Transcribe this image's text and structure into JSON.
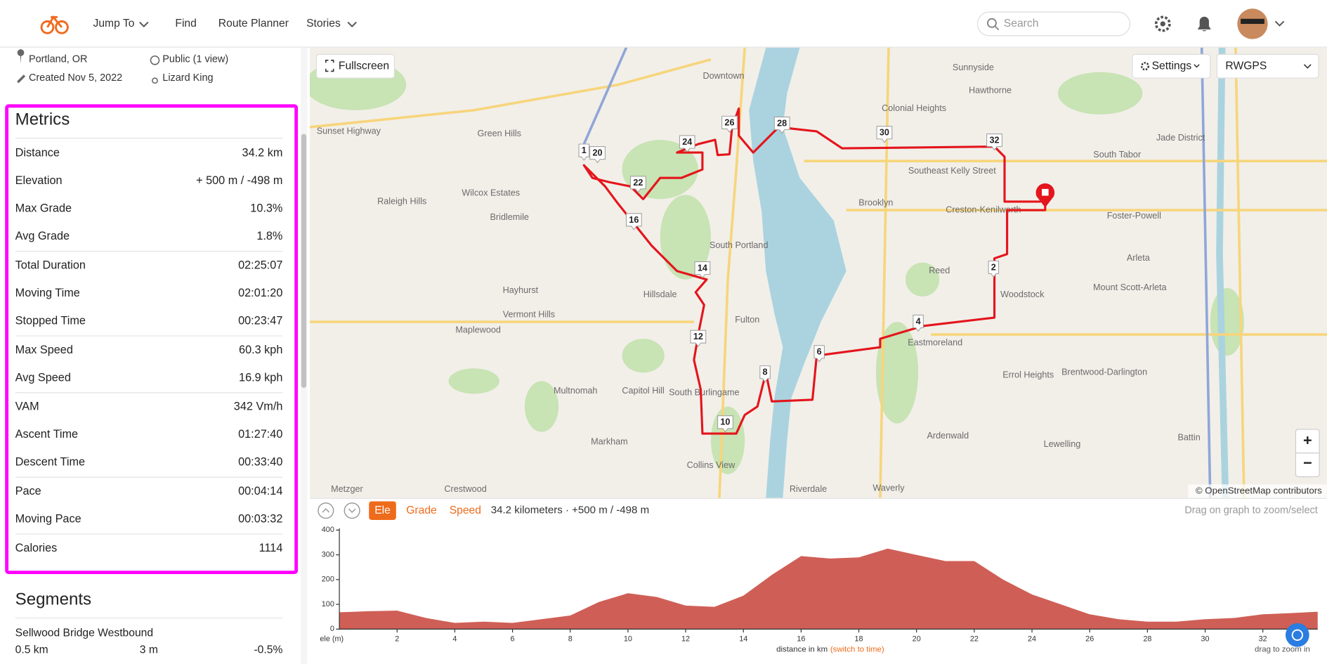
{
  "header": {
    "nav": [
      "Jump To",
      "Find",
      "Route Planner",
      "Stories"
    ],
    "search_placeholder": "Search"
  },
  "route_info": {
    "location": "Portland, OR",
    "visibility": "Public (1 view)",
    "created": "Created Nov 5, 2022",
    "author": "Lizard King"
  },
  "metrics": {
    "title": "Metrics",
    "groups": [
      [
        [
          "Distance",
          "34.2 km"
        ],
        [
          "Elevation",
          "+ 500 m / -498 m"
        ],
        [
          "Max Grade",
          "10.3%"
        ],
        [
          "Avg Grade",
          "1.8%"
        ]
      ],
      [
        [
          "Total Duration",
          "02:25:07"
        ],
        [
          "Moving Time",
          "02:01:20"
        ],
        [
          "Stopped Time",
          "00:23:47"
        ]
      ],
      [
        [
          "Max Speed",
          "60.3 kph"
        ],
        [
          "Avg Speed",
          "16.9 kph"
        ]
      ],
      [
        [
          "VAM",
          "342 Vm/h"
        ],
        [
          "Ascent Time",
          "01:27:40"
        ],
        [
          "Descent Time",
          "00:33:40"
        ]
      ],
      [
        [
          "Pace",
          "00:04:14"
        ],
        [
          "Moving Pace",
          "00:03:32"
        ]
      ],
      [
        [
          "Calories",
          "1114"
        ]
      ]
    ]
  },
  "segments": {
    "title": "Segments",
    "rows": [
      {
        "name": "Sellwood Bridge Westbound",
        "distance": "0.5 km",
        "elevation": "3 m",
        "grade": "-0.5%"
      }
    ]
  },
  "map": {
    "fullscreen": "Fullscreen",
    "settings": "Settings",
    "layer": "RWGPS",
    "zoom_in": "+",
    "zoom_out": "−",
    "attribution": "© OpenStreetMap contributors",
    "markers": [
      "1",
      "20",
      "22",
      "24",
      "26",
      "28",
      "30",
      "32",
      "2",
      "4",
      "6",
      "8",
      "10",
      "12",
      "14",
      "16"
    ],
    "labels": [
      "Sunset Highway",
      "Green Hills",
      "Downtown",
      "Sunnyside",
      "Hawthorne",
      "Colonial Heights",
      "Southeast Kelly Street",
      "South Tabor",
      "Jade District",
      "Wilcox Estates",
      "Raleigh Hills",
      "Bridlemile",
      "Brooklyn",
      "Creston-Kenilworth",
      "Foster-Powell",
      "Hayhurst",
      "Hillsdale",
      "Reed",
      "Woodstock",
      "Arleta",
      "Mount Scott-Arleta",
      "Vermont Hills",
      "Fulton",
      "Maplewood",
      "Eastmoreland",
      "Errol Heights",
      "Brentwood-Darlington",
      "Multnomah",
      "Capitol Hill",
      "South Burlingame",
      "Markham",
      "Collins View",
      "Ardenwald",
      "Lewelling",
      "Battin",
      "Crestwood",
      "Metzger",
      "Riverdale",
      "Waverly",
      "South Portland"
    ]
  },
  "elevation_toolbar": {
    "tabs": [
      "Ele",
      "Grade",
      "Speed"
    ],
    "summary": "34.2 kilometers · +500 m / -498 m",
    "hint": "Drag on graph to zoom/select"
  },
  "chart_data": {
    "type": "area",
    "color": "#cf5f56",
    "x": [
      0,
      1,
      2,
      3,
      4,
      5,
      6,
      7,
      8,
      9,
      10,
      11,
      12,
      13,
      14,
      15,
      16,
      17,
      18,
      19,
      20,
      21,
      22,
      23,
      24,
      25,
      26,
      27,
      28,
      29,
      30,
      31,
      32,
      33,
      33.9
    ],
    "values": [
      68,
      72,
      75,
      45,
      25,
      30,
      25,
      40,
      55,
      110,
      145,
      130,
      95,
      90,
      135,
      220,
      295,
      285,
      290,
      325,
      300,
      275,
      275,
      200,
      140,
      100,
      60,
      40,
      30,
      30,
      40,
      45,
      60,
      65,
      70
    ],
    "xlim": [
      0,
      33.9
    ],
    "ylim": [
      0,
      400
    ],
    "xticks": [
      2,
      4,
      6,
      8,
      10,
      12,
      14,
      16,
      18,
      20,
      22,
      24,
      26,
      28,
      30,
      32
    ],
    "yticks": [
      0,
      100,
      200,
      300,
      400
    ],
    "y_label": "ele (m)",
    "x_label": "distance in km",
    "x_label_link": "(switch to time)",
    "zoom_hint": "drag to zoom in"
  }
}
